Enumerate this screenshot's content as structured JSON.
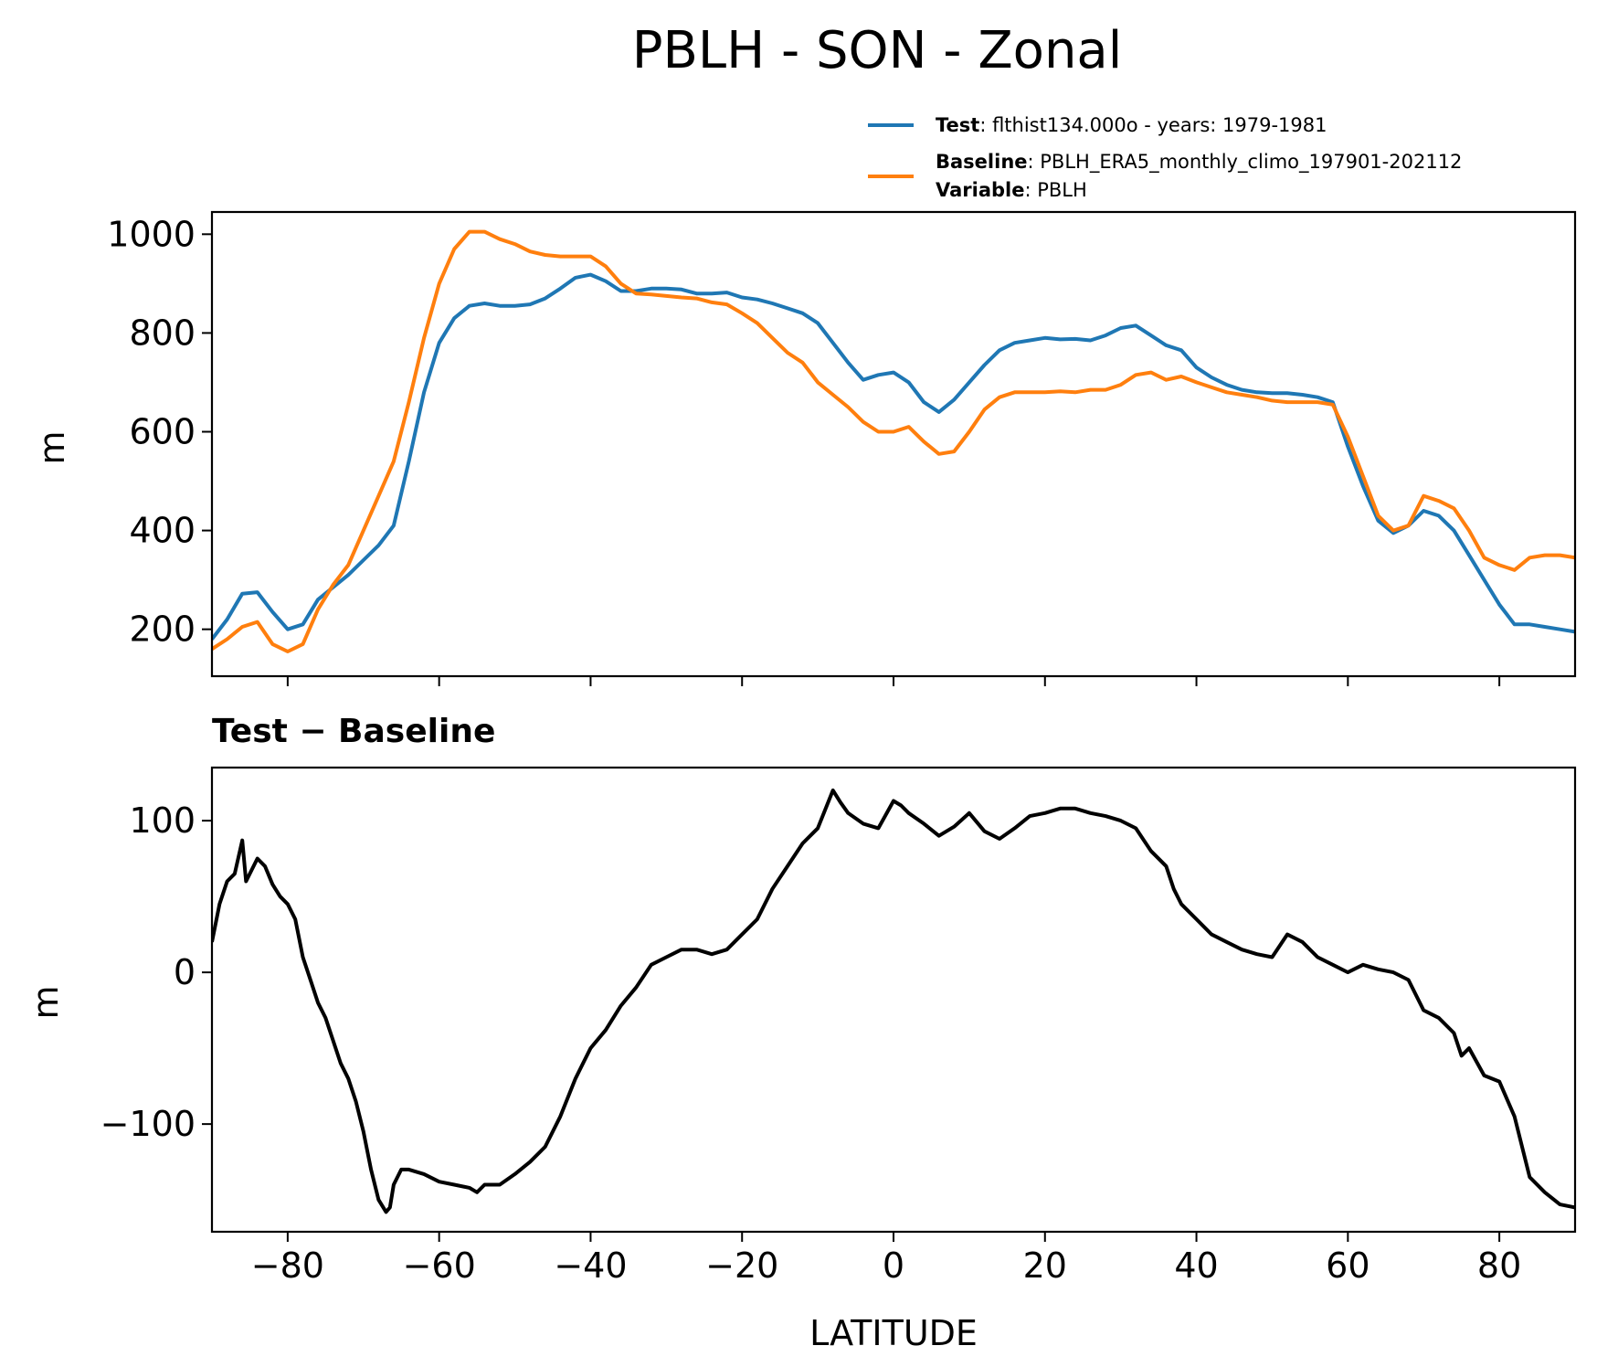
{
  "chart_data": [
    {
      "type": "line",
      "title": "PBLH - SON - Zonal",
      "xlabel": "",
      "ylabel": "m",
      "xlim": [
        -90,
        90
      ],
      "ylim": [
        105,
        1045
      ],
      "xticks": [
        -80,
        -60,
        -40,
        -20,
        0,
        20,
        40,
        60,
        80
      ],
      "yticks": [
        200,
        400,
        600,
        800,
        1000
      ],
      "ytick_labels": [
        "200",
        "400",
        "600",
        "800",
        "1000"
      ],
      "legend": {
        "placement": "above-top-right",
        "entries": [
          {
            "bold": "Test",
            "text": ": flthist134.000o - years: 1979-1981",
            "color": "#1f77b4"
          },
          {
            "bold": "Baseline",
            "text": ": PBLH_ERA5_monthly_climo_197901-202112",
            "color": "#ff7f0e"
          },
          {
            "bold": "Variable",
            "text": ": PBLH"
          }
        ]
      },
      "series": [
        {
          "name": "Test",
          "color": "#1f77b4",
          "x": [
            -90,
            -88,
            -86,
            -84,
            -82,
            -80,
            -78,
            -76,
            -74,
            -72,
            -70,
            -68,
            -66,
            -64,
            -62,
            -60,
            -58,
            -56,
            -54,
            -52,
            -50,
            -48,
            -46,
            -44,
            -42,
            -40,
            -38,
            -36,
            -34,
            -32,
            -30,
            -28,
            -26,
            -24,
            -22,
            -20,
            -18,
            -16,
            -14,
            -12,
            -10,
            -8,
            -6,
            -4,
            -2,
            0,
            2,
            4,
            6,
            8,
            10,
            12,
            14,
            16,
            18,
            20,
            22,
            24,
            26,
            28,
            30,
            32,
            34,
            36,
            38,
            40,
            42,
            44,
            46,
            48,
            50,
            52,
            54,
            56,
            58,
            60,
            62,
            64,
            66,
            68,
            70,
            72,
            74,
            76,
            78,
            80,
            82,
            84,
            86,
            88,
            90
          ],
          "y": [
            180,
            220,
            272,
            275,
            235,
            200,
            210,
            260,
            285,
            310,
            340,
            370,
            410,
            540,
            680,
            780,
            830,
            855,
            860,
            855,
            855,
            858,
            870,
            890,
            912,
            918,
            905,
            885,
            885,
            890,
            890,
            888,
            880,
            880,
            882,
            872,
            868,
            860,
            850,
            840,
            820,
            780,
            740,
            705,
            715,
            720,
            700,
            660,
            640,
            665,
            700,
            735,
            765,
            780,
            785,
            790,
            787,
            788,
            785,
            795,
            810,
            815,
            795,
            775,
            765,
            730,
            710,
            695,
            685,
            680,
            678,
            678,
            675,
            670,
            660,
            570,
            490,
            420,
            395,
            410,
            440,
            430,
            400,
            350,
            300,
            250,
            210,
            210,
            205,
            200,
            195
          ]
        },
        {
          "name": "Baseline",
          "color": "#ff7f0e",
          "x": [
            -90,
            -88,
            -86,
            -84,
            -82,
            -80,
            -78,
            -76,
            -74,
            -72,
            -70,
            -68,
            -66,
            -64,
            -62,
            -60,
            -58,
            -56,
            -54,
            -52,
            -50,
            -48,
            -46,
            -44,
            -42,
            -40,
            -38,
            -36,
            -34,
            -32,
            -30,
            -28,
            -26,
            -24,
            -22,
            -20,
            -18,
            -16,
            -14,
            -12,
            -10,
            -8,
            -6,
            -4,
            -2,
            0,
            2,
            4,
            6,
            8,
            10,
            12,
            14,
            16,
            18,
            20,
            22,
            24,
            26,
            28,
            30,
            32,
            34,
            36,
            38,
            40,
            42,
            44,
            46,
            48,
            50,
            52,
            54,
            56,
            58,
            60,
            62,
            64,
            66,
            68,
            70,
            72,
            74,
            76,
            78,
            80,
            82,
            84,
            86,
            88,
            90
          ],
          "y": [
            160,
            180,
            205,
            215,
            170,
            155,
            170,
            240,
            290,
            330,
            400,
            470,
            540,
            660,
            790,
            900,
            970,
            1005,
            1005,
            990,
            980,
            965,
            958,
            955,
            955,
            955,
            935,
            900,
            880,
            878,
            875,
            872,
            870,
            862,
            858,
            840,
            820,
            790,
            760,
            740,
            700,
            675,
            650,
            620,
            600,
            600,
            610,
            580,
            555,
            560,
            600,
            645,
            670,
            680,
            680,
            680,
            682,
            680,
            685,
            685,
            695,
            715,
            720,
            705,
            712,
            700,
            690,
            680,
            675,
            670,
            663,
            660,
            660,
            660,
            655,
            590,
            510,
            430,
            400,
            410,
            470,
            460,
            445,
            400,
            345,
            330,
            320,
            345,
            350,
            350,
            345
          ]
        }
      ]
    },
    {
      "type": "line",
      "title": "Test − Baseline",
      "xlabel": "LATITUDE",
      "ylabel": "m",
      "xlim": [
        -90,
        90
      ],
      "ylim": [
        -171,
        135
      ],
      "xticks": [
        -80,
        -60,
        -40,
        -20,
        0,
        20,
        40,
        60,
        80
      ],
      "xtick_labels": [
        "−80",
        "−60",
        "−40",
        "−20",
        "0",
        "20",
        "40",
        "60",
        "80"
      ],
      "yticks": [
        -100,
        0,
        100
      ],
      "ytick_labels": [
        "−100",
        "0",
        "100"
      ],
      "series": [
        {
          "name": "Test - Baseline",
          "color": "#000000",
          "x": [
            -90,
            -89,
            -88,
            -87,
            -86,
            -85.5,
            -85,
            -84,
            -83,
            -82,
            -81,
            -80,
            -79,
            -78,
            -77,
            -76,
            -75,
            -74,
            -73,
            -72,
            -71,
            -70,
            -69,
            -68,
            -67,
            -66.5,
            -66,
            -65,
            -64,
            -62,
            -60,
            -58,
            -56,
            -55,
            -54,
            -52,
            -50,
            -48,
            -46,
            -44,
            -42,
            -40,
            -38,
            -36,
            -34,
            -32,
            -30,
            -28,
            -26,
            -24,
            -22,
            -20,
            -18,
            -16,
            -14,
            -12,
            -10,
            -8,
            -7,
            -6,
            -4,
            -2,
            0,
            1,
            2,
            4,
            6,
            8,
            10,
            12,
            14,
            16,
            18,
            20,
            22,
            24,
            26,
            28,
            30,
            32,
            34,
            36,
            37,
            38,
            40,
            42,
            44,
            46,
            48,
            50,
            52,
            54,
            56,
            58,
            60,
            62,
            64,
            66,
            68,
            70,
            72,
            74,
            75,
            76,
            78,
            80,
            82,
            84,
            86,
            88,
            90
          ],
          "y": [
            20,
            45,
            60,
            65,
            87,
            60,
            65,
            75,
            70,
            58,
            50,
            45,
            35,
            10,
            -5,
            -20,
            -30,
            -45,
            -60,
            -70,
            -85,
            -105,
            -130,
            -150,
            -158,
            -155,
            -140,
            -130,
            -130,
            -133,
            -138,
            -140,
            -142,
            -145,
            -140,
            -140,
            -133,
            -125,
            -115,
            -95,
            -70,
            -50,
            -38,
            -22,
            -10,
            5,
            10,
            15,
            15,
            12,
            15,
            25,
            35,
            55,
            70,
            85,
            95,
            120,
            112,
            105,
            98,
            95,
            113,
            110,
            105,
            98,
            90,
            96,
            105,
            93,
            88,
            95,
            103,
            105,
            108,
            108,
            105,
            103,
            100,
            95,
            80,
            70,
            55,
            45,
            35,
            25,
            20,
            15,
            12,
            10,
            25,
            20,
            10,
            5,
            0,
            5,
            2,
            0,
            -5,
            -25,
            -30,
            -40,
            -55,
            -50,
            -68,
            -72,
            -95,
            -135,
            -145,
            -153,
            -155
          ]
        }
      ]
    }
  ]
}
